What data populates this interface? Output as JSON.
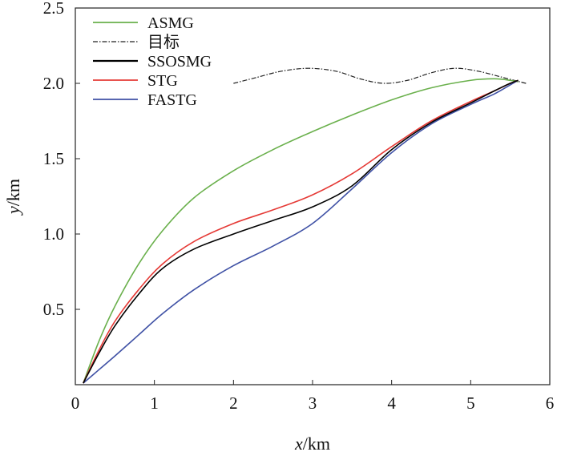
{
  "chart_data": {
    "type": "line",
    "title": "",
    "xlabel": {
      "var": "x",
      "unit": "/km"
    },
    "ylabel": {
      "var": "y",
      "unit": "/km"
    },
    "xlim": [
      0,
      6
    ],
    "ylim": [
      0,
      2.5
    ],
    "xticks": [
      "0",
      "1",
      "2",
      "3",
      "4",
      "5",
      "6"
    ],
    "yticks": [
      "0.5",
      "1.0",
      "1.5",
      "2.0",
      "2.5"
    ],
    "grid": false,
    "legend_position": "top-left",
    "series": [
      {
        "name": "ASMG",
        "color": "#6ab04c",
        "dash": "solid",
        "x": [
          0.1,
          0.3,
          0.5,
          0.8,
          1.1,
          1.5,
          2.0,
          2.5,
          3.0,
          3.5,
          4.0,
          4.5,
          5.0,
          5.3,
          5.5,
          5.6
        ],
        "y": [
          0.01,
          0.29,
          0.52,
          0.8,
          1.02,
          1.24,
          1.42,
          1.56,
          1.68,
          1.79,
          1.89,
          1.97,
          2.02,
          2.03,
          2.02,
          2.01
        ]
      },
      {
        "name": "目标",
        "color": "#222222",
        "dash": "dashdot",
        "x": [
          2.0,
          2.3,
          2.6,
          2.95,
          3.3,
          3.6,
          3.9,
          4.2,
          4.5,
          4.8,
          5.1,
          5.4,
          5.7
        ],
        "y": [
          2.0,
          2.04,
          2.08,
          2.1,
          2.08,
          2.03,
          2.0,
          2.02,
          2.07,
          2.1,
          2.08,
          2.04,
          2.0
        ]
      },
      {
        "name": "SSOSMG",
        "color": "#000000",
        "dash": "solid",
        "x": [
          0.1,
          0.3,
          0.5,
          0.8,
          1.1,
          1.5,
          2.0,
          2.5,
          3.0,
          3.5,
          4.0,
          4.5,
          5.0,
          5.3,
          5.5,
          5.6
        ],
        "y": [
          0.01,
          0.21,
          0.39,
          0.6,
          0.77,
          0.9,
          1.0,
          1.09,
          1.18,
          1.32,
          1.56,
          1.74,
          1.87,
          1.95,
          2.0,
          2.02
        ]
      },
      {
        "name": "STG",
        "color": "#e53935",
        "dash": "solid",
        "x": [
          0.1,
          0.3,
          0.5,
          0.8,
          1.1,
          1.5,
          2.0,
          2.5,
          3.0,
          3.5,
          4.0,
          4.5,
          5.0,
          5.3,
          5.5,
          5.6
        ],
        "y": [
          0.01,
          0.23,
          0.42,
          0.63,
          0.8,
          0.95,
          1.07,
          1.16,
          1.26,
          1.4,
          1.58,
          1.75,
          1.88,
          1.95,
          2.0,
          2.02
        ]
      },
      {
        "name": "FASTG",
        "color": "#3f51a5",
        "dash": "solid",
        "x": [
          0.1,
          0.3,
          0.5,
          0.8,
          1.1,
          1.5,
          2.0,
          2.5,
          3.0,
          3.5,
          4.0,
          4.5,
          5.0,
          5.3,
          5.5,
          5.6
        ],
        "y": [
          0.01,
          0.1,
          0.19,
          0.33,
          0.47,
          0.63,
          0.79,
          0.92,
          1.07,
          1.3,
          1.54,
          1.73,
          1.86,
          1.93,
          1.99,
          2.02
        ]
      }
    ]
  }
}
